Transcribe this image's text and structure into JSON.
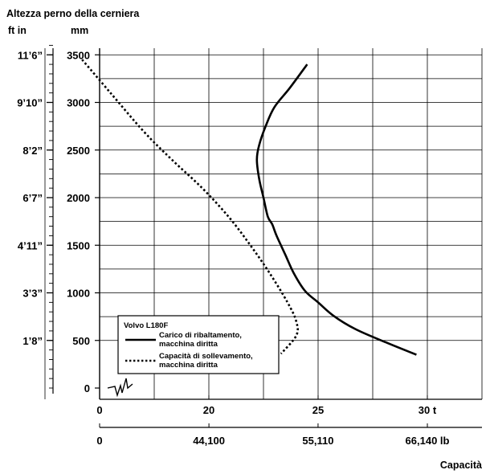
{
  "chart_data": {
    "type": "line",
    "title": "Altezza perno della cerniera",
    "left_axis": {
      "unit_label": "ft in",
      "tick_labels": [
        "1’8”",
        "3’3”",
        "4’11”",
        "6’7”",
        "8’2”",
        "9’10”",
        "11’6”"
      ],
      "tick_values_mm": [
        500,
        1000,
        1500,
        2000,
        2500,
        3000,
        3500
      ]
    },
    "y_axis": {
      "unit_label": "mm",
      "ticks": [
        0,
        500,
        1000,
        1500,
        2000,
        2500,
        3000,
        3500
      ],
      "tick_labels": [
        "0",
        "500",
        "1000",
        "1500",
        "2000",
        "2500",
        "3000",
        "3500"
      ],
      "range": [
        0,
        3600
      ]
    },
    "x_axis_metric": {
      "unit": "t",
      "ticks": [
        0,
        20,
        25,
        30
      ],
      "tick_labels": [
        "0",
        "20",
        "25",
        "30 t"
      ],
      "plot_range": [
        12.5,
        33
      ],
      "grid_step": 2.5,
      "break_after_zero": true
    },
    "x_axis_imperial": {
      "unit": "lb",
      "ticks": [
        0,
        44100,
        55110,
        66140
      ],
      "tick_labels": [
        "0",
        "44,100",
        "55,110",
        "66,140 lb"
      ]
    },
    "xlabel": "Capacità",
    "grid": true,
    "legend": {
      "title": "Volvo L180F",
      "position": "bottom-left"
    },
    "series": [
      {
        "name": "Carico di ribaltamento, macchina diritta",
        "style": "solid",
        "points": [
          [
            29.5,
            350
          ],
          [
            28.1,
            480
          ],
          [
            26.7,
            620
          ],
          [
            25.7,
            760
          ],
          [
            25.0,
            900
          ],
          [
            24.4,
            1020
          ],
          [
            23.9,
            1200
          ],
          [
            23.5,
            1400
          ],
          [
            23.1,
            1600
          ],
          [
            22.9,
            1720
          ],
          [
            22.7,
            1800
          ],
          [
            22.5,
            2000
          ],
          [
            22.3,
            2200
          ],
          [
            22.2,
            2400
          ],
          [
            22.3,
            2550
          ],
          [
            22.6,
            2750
          ],
          [
            23.0,
            2950
          ],
          [
            23.7,
            3150
          ],
          [
            24.5,
            3400
          ]
        ]
      },
      {
        "name": "Capacità di sollevamento, macchina diritta",
        "style": "dotted",
        "points": [
          [
            14.2,
            3450
          ],
          [
            15.5,
            3100
          ],
          [
            17.0,
            2700
          ],
          [
            18.3,
            2400
          ],
          [
            19.7,
            2100
          ],
          [
            20.9,
            1800
          ],
          [
            21.9,
            1500
          ],
          [
            22.8,
            1200
          ],
          [
            23.6,
            900
          ],
          [
            24.0,
            700
          ],
          [
            24.0,
            550
          ],
          [
            23.3,
            360
          ]
        ]
      }
    ]
  }
}
